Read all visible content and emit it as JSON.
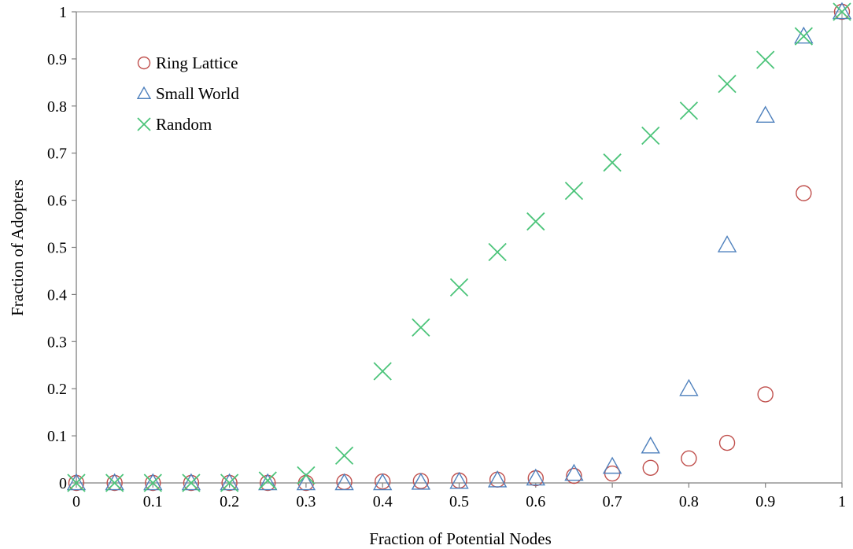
{
  "chart_data": {
    "type": "scatter",
    "title": "",
    "xlabel": "Fraction of Potential Nodes",
    "ylabel": "Fraction of Adopters",
    "xlim": [
      0,
      1
    ],
    "ylim": [
      0,
      1
    ],
    "x_ticks": [
      "0",
      "0.1",
      "0.2",
      "0.3",
      "0.4",
      "0.5",
      "0.6",
      "0.7",
      "0.8",
      "0.9",
      "1"
    ],
    "y_ticks": [
      "0",
      "0.1",
      "0.2",
      "0.3",
      "0.4",
      "0.5",
      "0.6",
      "0.7",
      "0.8",
      "0.9",
      "1"
    ],
    "grid": false,
    "legend_position": "top-left",
    "x": [
      0,
      0.05,
      0.1,
      0.15,
      0.2,
      0.25,
      0.3,
      0.35,
      0.4,
      0.45,
      0.5,
      0.55,
      0.6,
      0.65,
      0.7,
      0.75,
      0.8,
      0.85,
      0.9,
      0.95,
      1
    ],
    "series": [
      {
        "name": "Ring Lattice",
        "marker": "circle",
        "color": "#c0504d",
        "values": [
          0,
          0,
          0,
          0,
          0,
          0,
          0,
          0.002,
          0.003,
          0.004,
          0.005,
          0.007,
          0.01,
          0.015,
          0.02,
          0.032,
          0.052,
          0.085,
          0.188,
          0.615,
          1.0
        ]
      },
      {
        "name": "Small World",
        "marker": "triangle",
        "color": "#4f81bd",
        "values": [
          0,
          0,
          0,
          0,
          0,
          0,
          0,
          0,
          0,
          0.001,
          0.003,
          0.006,
          0.01,
          0.02,
          0.035,
          0.078,
          0.2,
          0.505,
          0.78,
          0.948,
          1.0
        ]
      },
      {
        "name": "Random",
        "marker": "x",
        "color": "#4cc47a",
        "values": [
          0,
          0,
          0,
          0,
          0,
          0.005,
          0.016,
          0.058,
          0.237,
          0.33,
          0.415,
          0.49,
          0.555,
          0.62,
          0.68,
          0.737,
          0.79,
          0.847,
          0.898,
          0.948,
          1.0
        ]
      }
    ]
  }
}
